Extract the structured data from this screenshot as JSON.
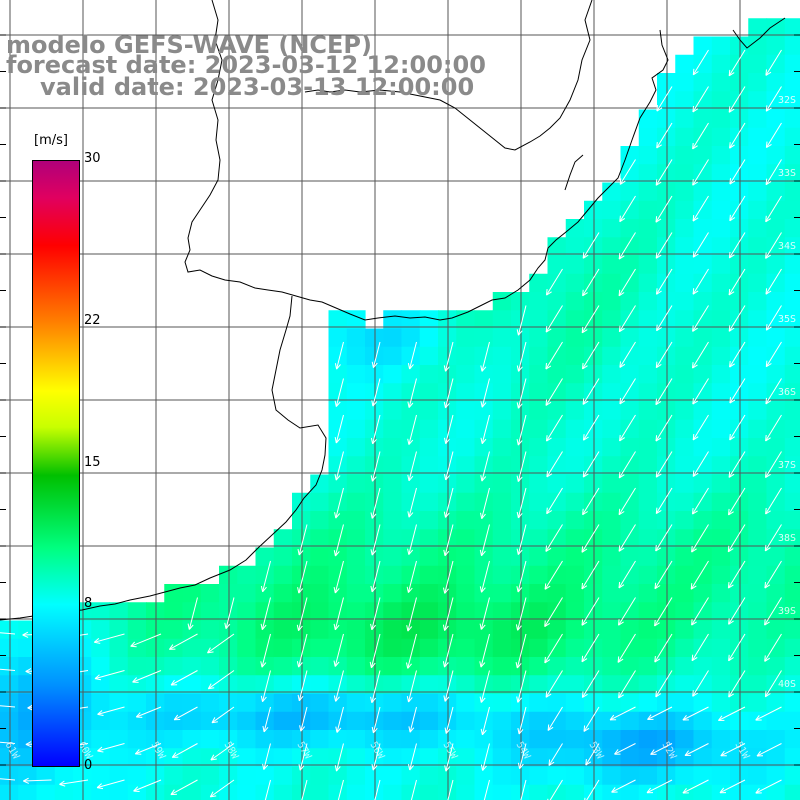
{
  "title": {
    "line1": "modelo GEFS-WAVE (NCEP)",
    "line2": "forecast date: 2023-03-12 12:00:00",
    "line3": "valid date: 2023-03-13 12:00:00"
  },
  "colorbar": {
    "unit": "[m/s]",
    "min": 0,
    "max": 30,
    "ticks": [
      "30",
      "22",
      "15",
      "8",
      "0"
    ],
    "tick_values": [
      30,
      22,
      15,
      8,
      0
    ],
    "colors": [
      "#0000ff",
      "#0090ff",
      "#00ffff",
      "#00ff80",
      "#00c000",
      "#ffff00",
      "#ff8000",
      "#ff0000",
      "#b0007a"
    ]
  },
  "lat_labels": [
    "32S",
    "33S",
    "34S",
    "35S",
    "36S",
    "37S",
    "38S",
    "39S",
    "40S"
  ],
  "lon_labels": [
    "61W",
    "60W",
    "59W",
    "58W",
    "57W",
    "56W",
    "55W",
    "54W",
    "53W",
    "52W",
    "51W"
  ],
  "colors": {
    "grid": "#555555",
    "coast": "#000000",
    "arrow": "#ffffff",
    "land": "#ffffff",
    "title": "#8a8a8a"
  }
}
